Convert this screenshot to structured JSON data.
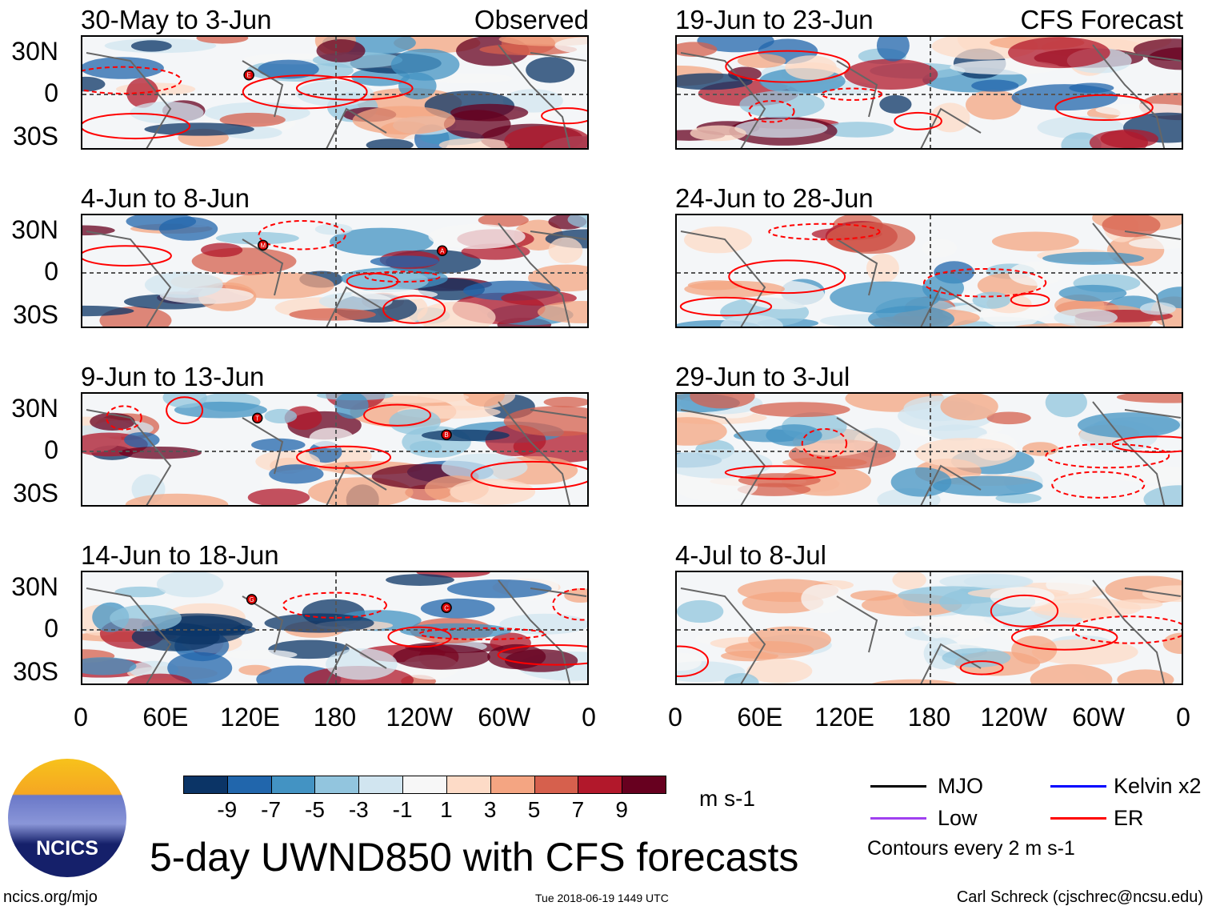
{
  "columns": [
    {
      "header": "Observed",
      "panels": [
        {
          "title": "30-May to 3-Jun",
          "storms": [
            {
              "id": "E",
              "lon": 118,
              "lat": 14
            }
          ]
        },
        {
          "title": "4-Jun to 8-Jun",
          "storms": [
            {
              "id": "M",
              "lon": 128,
              "lat": 20
            },
            {
              "id": "A",
              "lon": 255,
              "lat": 16
            }
          ]
        },
        {
          "title": "9-Jun to 13-Jun",
          "storms": [
            {
              "id": "T",
              "lon": 124,
              "lat": 24
            },
            {
              "id": "B",
              "lon": 258,
              "lat": 12
            }
          ]
        },
        {
          "title": "14-Jun to 18-Jun",
          "storms": [
            {
              "id": "G",
              "lon": 120,
              "lat": 22
            },
            {
              "id": "C",
              "lon": 258,
              "lat": 16
            }
          ]
        }
      ]
    },
    {
      "header": "CFS Forecast",
      "panels": [
        {
          "title": "19-Jun to 23-Jun",
          "storms": []
        },
        {
          "title": "24-Jun to 28-Jun",
          "storms": []
        },
        {
          "title": "29-Jun to 3-Jul",
          "storms": []
        },
        {
          "title": "4-Jul to 8-Jul",
          "storms": []
        }
      ]
    }
  ],
  "y_labels": [
    "30N",
    "0",
    "30S"
  ],
  "x_labels": [
    "0",
    "60E",
    "120E",
    "180",
    "120W",
    "60W",
    "0"
  ],
  "colorbar": {
    "colors": [
      "#0b3466",
      "#2166ac",
      "#4393c3",
      "#92c5de",
      "#d1e5f0",
      "#f7f7f7",
      "#fddbc7",
      "#f4a582",
      "#d6604d",
      "#b2182b",
      "#67001f"
    ],
    "ticks": [
      "-9",
      "-7",
      "-5",
      "-3",
      "-1",
      "1",
      "3",
      "5",
      "7",
      "9"
    ],
    "units": "m s-1"
  },
  "legend": {
    "items": [
      {
        "label": "MJO",
        "color": "#000000"
      },
      {
        "label": "Kelvin x2",
        "color": "#0000ff"
      },
      {
        "label": "Low",
        "color": "#a040f0"
      },
      {
        "label": "ER",
        "color": "#ff0000"
      }
    ],
    "note": "Contours every 2 m s-1"
  },
  "title": "5-day UWND850 with CFS forecasts",
  "logo_text": "NCICS",
  "footer": {
    "left": "ncics.org/mjo",
    "center": "Tue 2018-06-19 1449 UTC",
    "right": "Carl Schreck (cjschrec@ncsu.edu)"
  }
}
